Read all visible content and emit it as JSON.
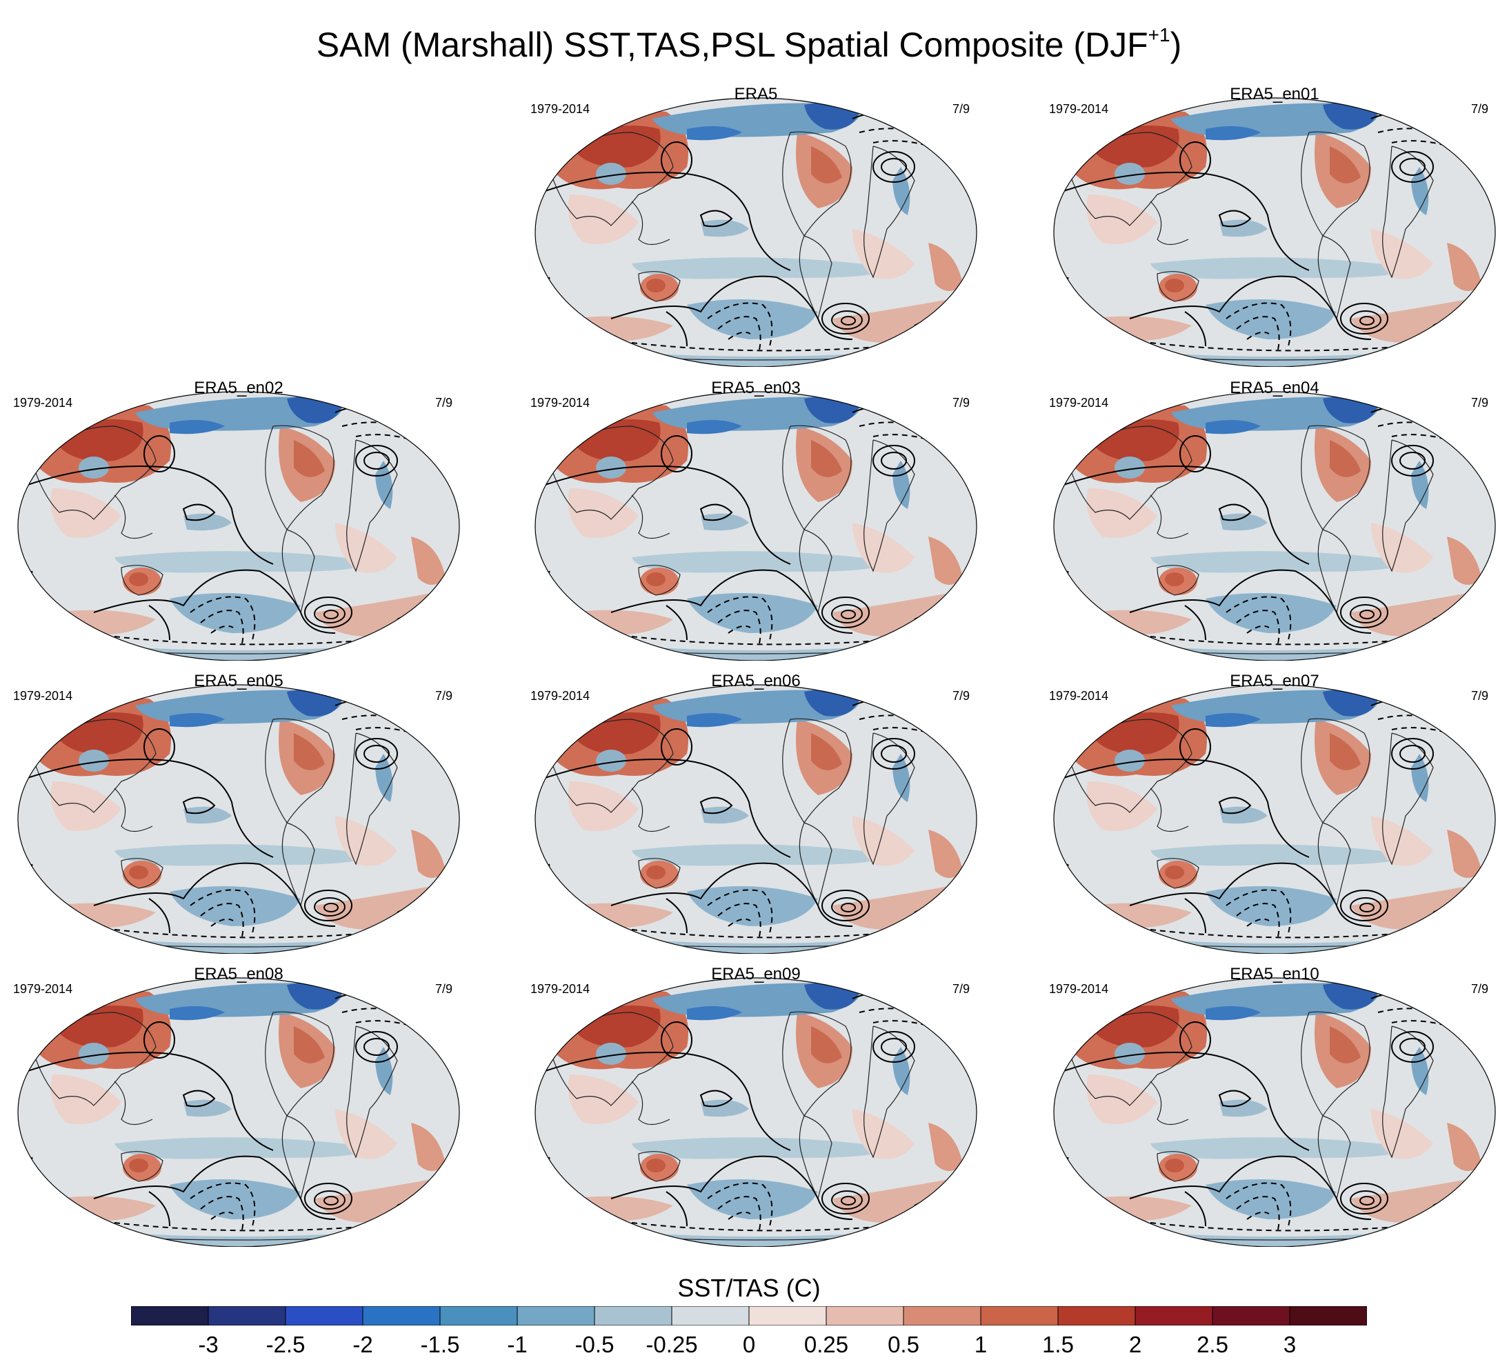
{
  "title_main": "SAM (Marshall) SST,TAS,PSL Spatial Composite (DJF",
  "title_sup": "+1",
  "title_end": ")",
  "panels": [
    {
      "name": "ERA5",
      "years": "1979-2014",
      "count": "7/9"
    },
    {
      "name": "ERA5_en01",
      "years": "1979-2014",
      "count": "7/9"
    },
    {
      "name": "ERA5_en02",
      "years": "1979-2014",
      "count": "7/9"
    },
    {
      "name": "ERA5_en03",
      "years": "1979-2014",
      "count": "7/9"
    },
    {
      "name": "ERA5_en04",
      "years": "1979-2014",
      "count": "7/9"
    },
    {
      "name": "ERA5_en05",
      "years": "1979-2014",
      "count": "7/9"
    },
    {
      "name": "ERA5_en06",
      "years": "1979-2014",
      "count": "7/9"
    },
    {
      "name": "ERA5_en07",
      "years": "1979-2014",
      "count": "7/9"
    },
    {
      "name": "ERA5_en08",
      "years": "1979-2014",
      "count": "7/9"
    },
    {
      "name": "ERA5_en09",
      "years": "1979-2014",
      "count": "7/9"
    },
    {
      "name": "ERA5_en10",
      "years": "1979-2014",
      "count": "7/9"
    }
  ],
  "colorbar": {
    "title": "SST/TAS (C)",
    "labels": [
      "-3",
      "-2.5",
      "-2",
      "-1.5",
      "-1",
      "-0.5",
      "-0.25",
      "0",
      "0.25",
      "0.5",
      "1",
      "1.5",
      "2",
      "2.5",
      "3"
    ],
    "colors": [
      "#1b1f4a",
      "#263580",
      "#2a4fc4",
      "#2a73c4",
      "#4a90bf",
      "#74a7c6",
      "#a8c2d1",
      "#d6dde2",
      "#f0e0dc",
      "#e6bcb0",
      "#d88c76",
      "#cb6448",
      "#b43a2a",
      "#961c24",
      "#6e1020",
      "#4e0c16"
    ]
  }
}
